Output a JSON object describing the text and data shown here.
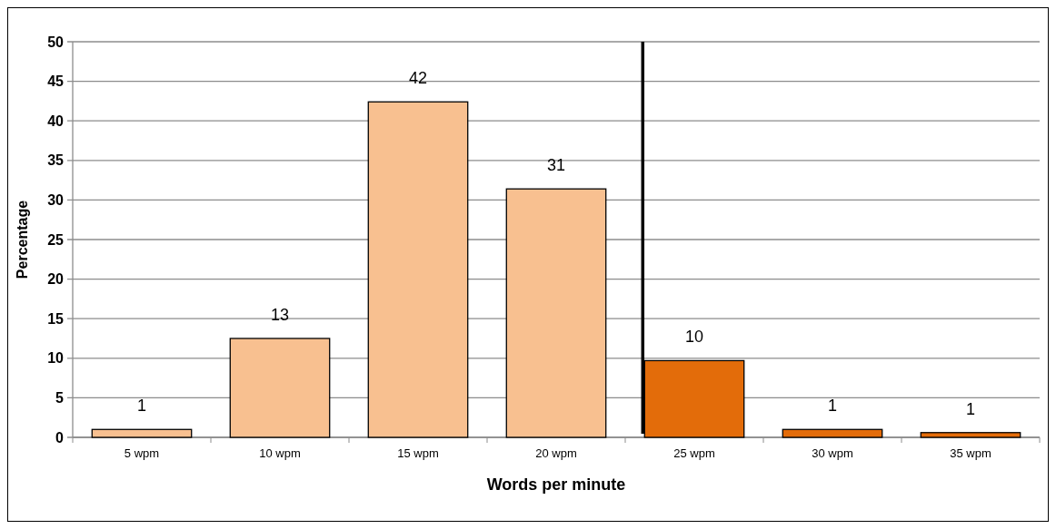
{
  "chart_data": {
    "type": "bar",
    "xlabel": "Words per minute",
    "ylabel": "Percentage",
    "categories": [
      "5 wpm",
      "10 wpm",
      "15 wpm",
      "20 wpm",
      "25 wpm",
      "30 wpm",
      "35 wpm"
    ],
    "values": [
      1.0,
      12.5,
      42.4,
      31.4,
      9.7,
      1.0,
      0.6
    ],
    "value_labels": [
      "1",
      "13",
      "42",
      "31",
      "10",
      "1",
      "1"
    ],
    "colors": [
      "#f8c090",
      "#f8c090",
      "#f8c090",
      "#f8c090",
      "#e36c0a",
      "#e36c0a",
      "#e36c0a"
    ],
    "ylim": [
      0,
      50
    ],
    "yticks": [
      0,
      5,
      10,
      15,
      20,
      25,
      30,
      35,
      40,
      45,
      50
    ],
    "grid": "y",
    "ref_lines": [
      {
        "axis": "x",
        "value": "25 wpm",
        "color": "#000000"
      }
    ]
  }
}
